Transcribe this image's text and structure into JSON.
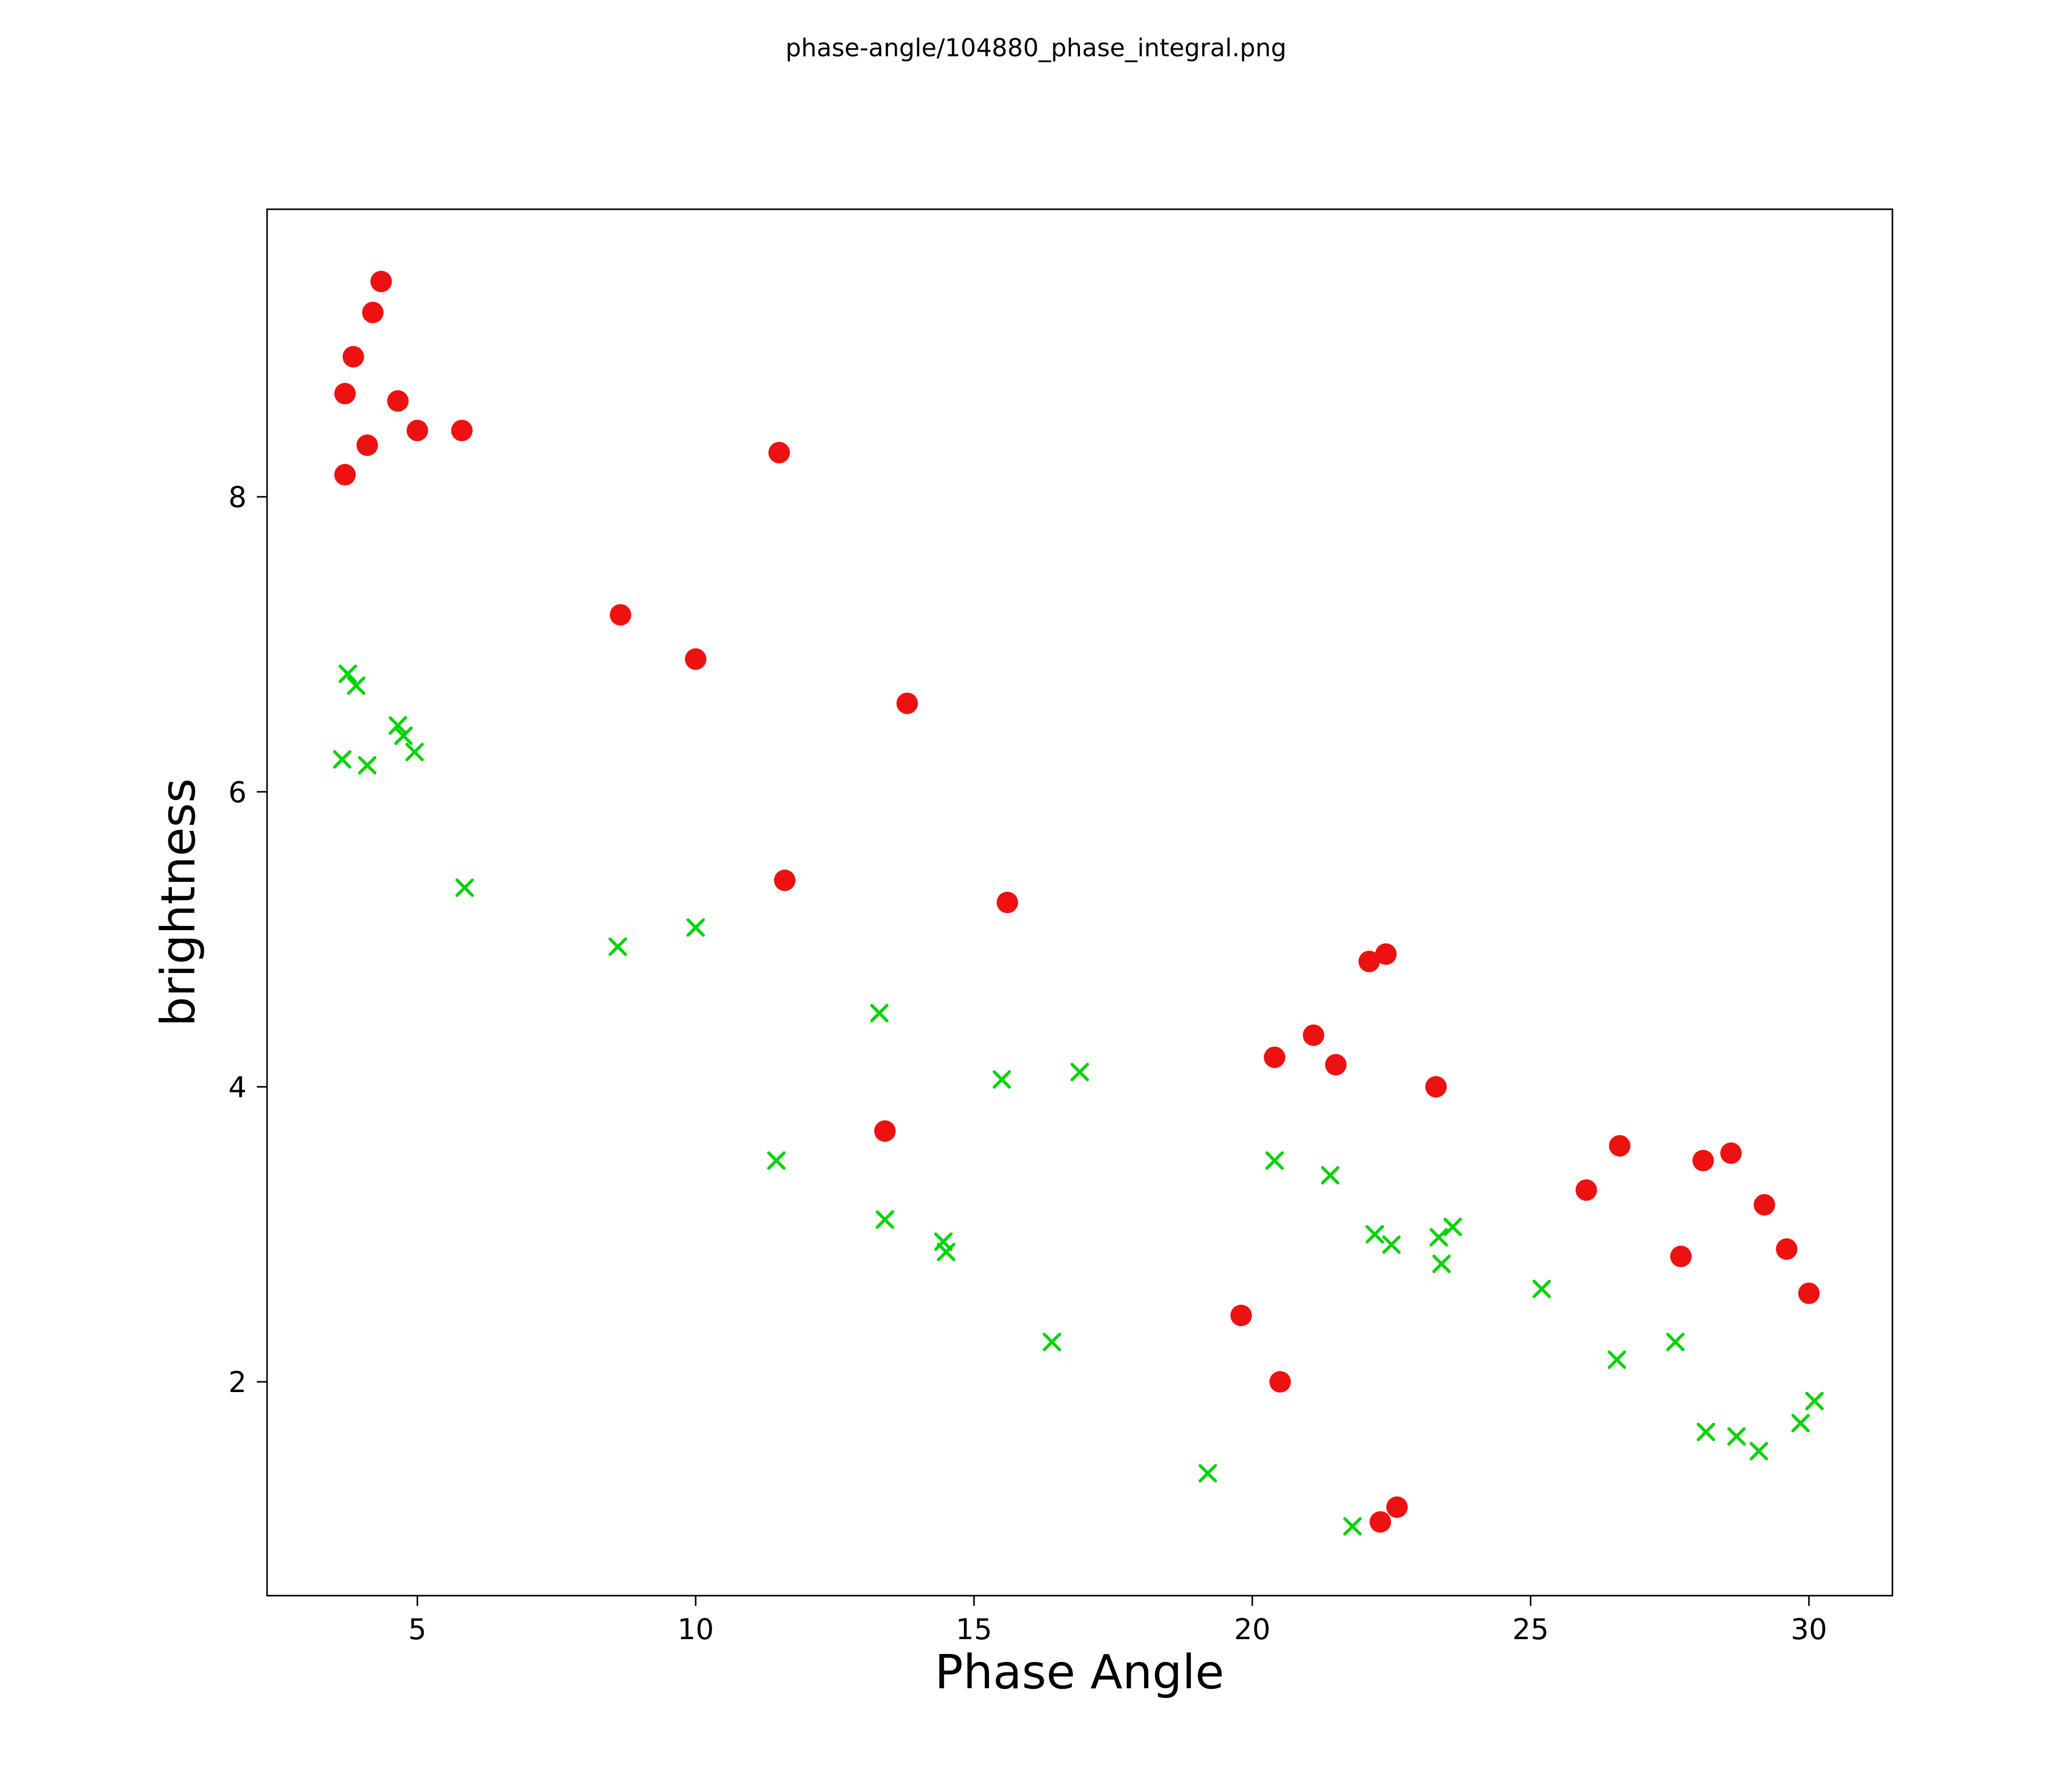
{
  "title": "phase-angle/104880_phase_integral.png",
  "chart_data": {
    "type": "scatter",
    "title": "phase-angle/104880_phase_integral.png",
    "xlabel": "Phase Angle",
    "ylabel": "brightness",
    "xlim": [
      2.3,
      31.5
    ],
    "ylim": [
      0.55,
      9.95
    ],
    "xticks": [
      5,
      10,
      15,
      20,
      25,
      30
    ],
    "yticks": [
      2,
      4,
      6,
      8
    ],
    "grid": false,
    "legend": "none",
    "series": [
      {
        "name": "red-circles",
        "marker": "circle",
        "color": "#ee1111",
        "points": [
          [
            4.35,
            9.46
          ],
          [
            4.2,
            9.25
          ],
          [
            3.85,
            8.95
          ],
          [
            3.7,
            8.7
          ],
          [
            4.65,
            8.65
          ],
          [
            4.1,
            8.35
          ],
          [
            5.0,
            8.45
          ],
          [
            5.8,
            8.45
          ],
          [
            3.7,
            8.15
          ],
          [
            11.5,
            8.3
          ],
          [
            8.65,
            7.2
          ],
          [
            10.0,
            6.9
          ],
          [
            13.8,
            6.6
          ],
          [
            11.6,
            5.4
          ],
          [
            15.6,
            5.25
          ],
          [
            22.1,
            4.85
          ],
          [
            22.4,
            4.9
          ],
          [
            21.1,
            4.35
          ],
          [
            20.4,
            4.2
          ],
          [
            21.5,
            4.15
          ],
          [
            23.3,
            4.0
          ],
          [
            13.4,
            3.7
          ],
          [
            26.6,
            3.6
          ],
          [
            28.1,
            3.5
          ],
          [
            28.6,
            3.55
          ],
          [
            26.0,
            3.3
          ],
          [
            29.2,
            3.2
          ],
          [
            27.7,
            2.85
          ],
          [
            29.6,
            2.9
          ],
          [
            19.8,
            2.45
          ],
          [
            30.0,
            2.6
          ],
          [
            20.5,
            2.0
          ],
          [
            22.6,
            1.15
          ],
          [
            22.3,
            1.05
          ]
        ]
      },
      {
        "name": "green-crosses",
        "marker": "x",
        "color": "#00d200",
        "points": [
          [
            3.75,
            6.8
          ],
          [
            3.9,
            6.72
          ],
          [
            4.65,
            6.45
          ],
          [
            4.75,
            6.38
          ],
          [
            3.65,
            6.22
          ],
          [
            4.1,
            6.18
          ],
          [
            4.95,
            6.27
          ],
          [
            5.85,
            5.35
          ],
          [
            8.6,
            4.95
          ],
          [
            10.0,
            5.08
          ],
          [
            13.3,
            4.5
          ],
          [
            15.5,
            4.05
          ],
          [
            16.9,
            4.1
          ],
          [
            11.45,
            3.5
          ],
          [
            13.4,
            3.1
          ],
          [
            14.45,
            2.95
          ],
          [
            14.5,
            2.88
          ],
          [
            20.4,
            3.5
          ],
          [
            21.4,
            3.4
          ],
          [
            22.2,
            3.0
          ],
          [
            22.5,
            2.93
          ],
          [
            23.35,
            2.98
          ],
          [
            23.6,
            3.05
          ],
          [
            23.4,
            2.8
          ],
          [
            25.2,
            2.63
          ],
          [
            16.4,
            2.27
          ],
          [
            26.55,
            2.15
          ],
          [
            27.6,
            2.27
          ],
          [
            19.2,
            1.38
          ],
          [
            28.15,
            1.66
          ],
          [
            28.7,
            1.63
          ],
          [
            29.1,
            1.53
          ],
          [
            30.1,
            1.87
          ],
          [
            29.85,
            1.72
          ],
          [
            21.8,
            1.02
          ]
        ]
      }
    ]
  }
}
